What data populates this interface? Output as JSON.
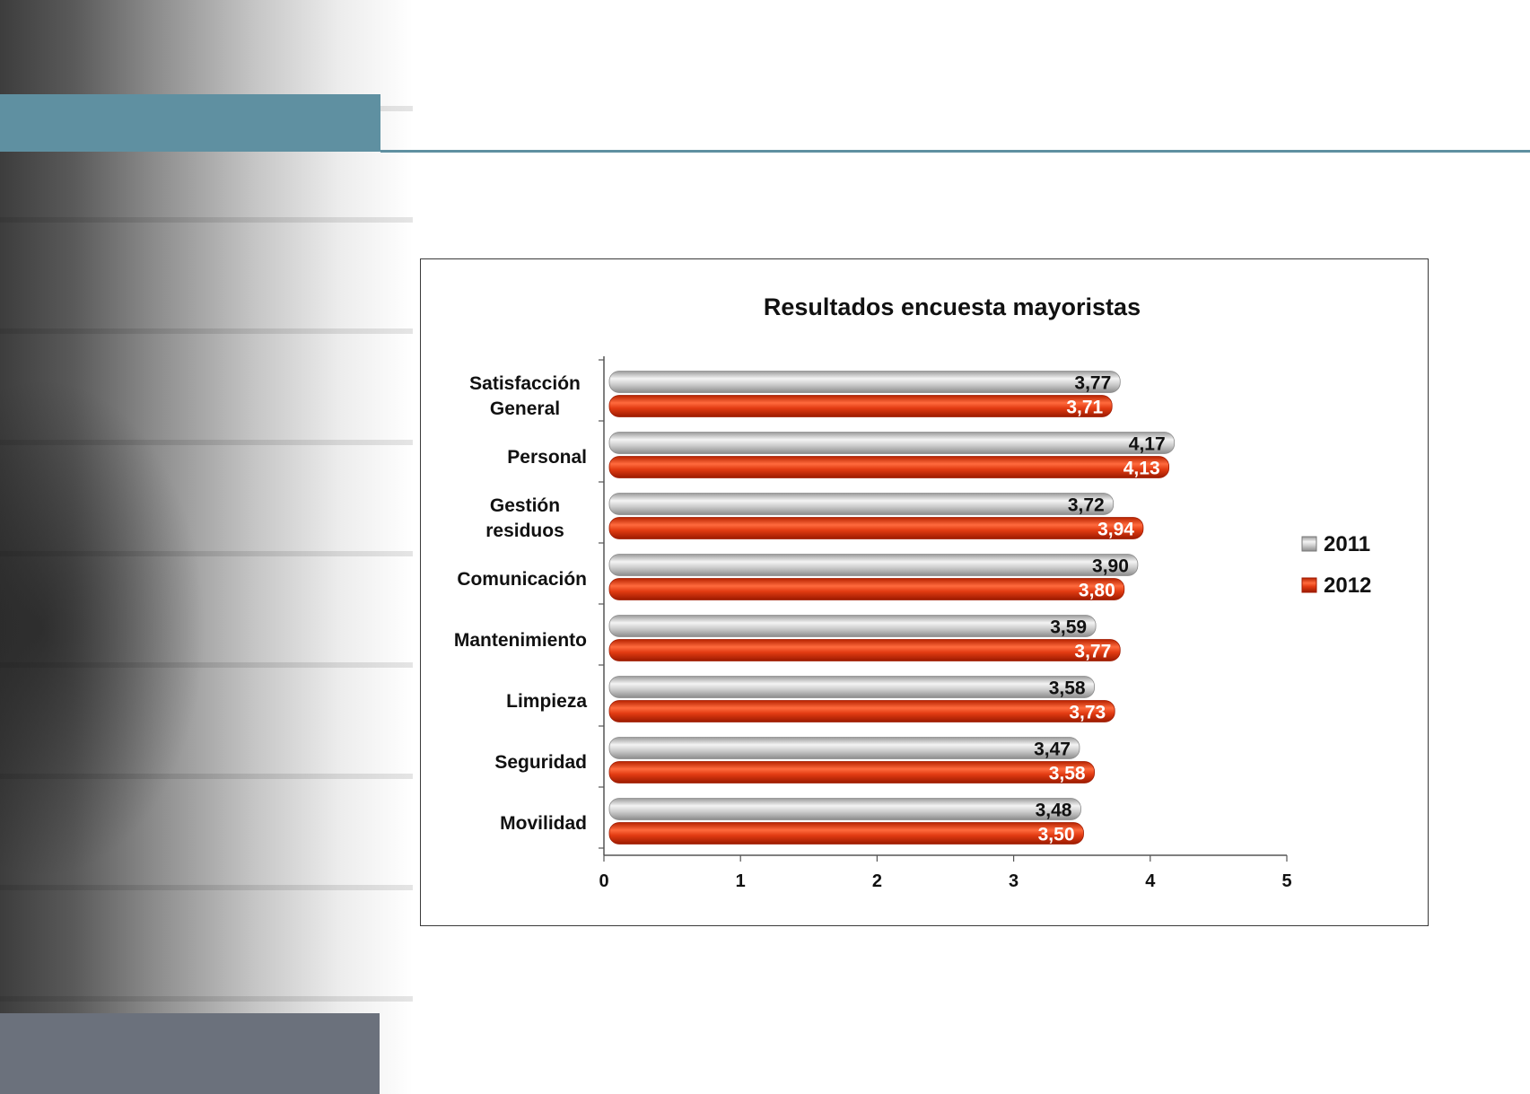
{
  "colors": {
    "accent": "#5f90a1",
    "footer": "#6b717c",
    "series_2011": "#c8c8c8",
    "series_2012": "#e23b12"
  },
  "chart_data": {
    "type": "bar",
    "orientation": "horizontal",
    "title": "Resultados encuesta mayoristas",
    "categories": [
      [
        "Satisfacción",
        "General"
      ],
      [
        "Personal"
      ],
      [
        "Gestión",
        "residuos"
      ],
      [
        "Comunicación"
      ],
      [
        "Mantenimiento"
      ],
      [
        "Limpieza"
      ],
      [
        "Seguridad"
      ],
      [
        "Movilidad"
      ]
    ],
    "series": [
      {
        "name": "2011",
        "values": [
          3.77,
          4.17,
          3.72,
          3.9,
          3.59,
          3.58,
          3.47,
          3.48
        ],
        "labels": [
          "3,77",
          "4,17",
          "3,72",
          "3,90",
          "3,59",
          "3,58",
          "3,47",
          "3,48"
        ]
      },
      {
        "name": "2012",
        "values": [
          3.71,
          4.13,
          3.94,
          3.8,
          3.77,
          3.73,
          3.58,
          3.5
        ],
        "labels": [
          "3,71",
          "4,13",
          "3,94",
          "3,80",
          "3,77",
          "3,73",
          "3,58",
          "3,50"
        ]
      }
    ],
    "xlim": [
      0,
      5
    ],
    "xticks": [
      "0",
      "1",
      "2",
      "3",
      "4",
      "5"
    ],
    "xlabel": "",
    "ylabel": "",
    "grid": false,
    "legend_position": "right"
  }
}
